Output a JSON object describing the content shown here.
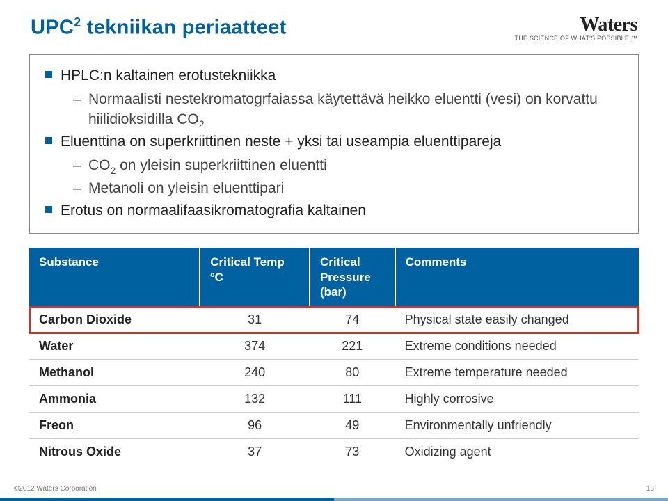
{
  "header": {
    "title_pre": "UPC",
    "title_sup": "2",
    "title_post": " tekniikan periaatteet",
    "logo_name": "Waters",
    "logo_tagline": "THE SCIENCE OF WHAT'S POSSIBLE.™"
  },
  "content": {
    "b1": "HPLC:n kaltainen erotustekniikka",
    "b1_1_pre": "Normaalisti nestekromatogrfaiassa käytettävä heikko eluentti (vesi) on korvattu hiilidioksidilla CO",
    "b1_1_sub": "2",
    "b2": "Eluenttina on superkriittinen neste + yksi tai useampia eluenttipareja",
    "b2_1_pre": "CO",
    "b2_1_sub": "2",
    "b2_1_post": " on yleisin superkriittinen eluentti",
    "b2_2": "Metanoli on yleisin eluenttipari",
    "b3": "Erotus on normaalifaasikromatografia kaltainen"
  },
  "table": {
    "headers": {
      "substance": "Substance",
      "temp": "Critical Temp ºC",
      "pressure_l1": "Critical",
      "pressure_l2": "Pressure",
      "pressure_l3": "(bar)",
      "comments": "Comments"
    },
    "col_widths": [
      "28%",
      "18%",
      "14%",
      "40%"
    ],
    "header_bg": "#0061a0",
    "header_fg": "#ffffff",
    "highlight_color": "#c0392b",
    "rows": [
      {
        "substance": "Carbon Dioxide",
        "temp": "31",
        "pressure": "74",
        "comment": "Physical state easily changed",
        "highlight": true
      },
      {
        "substance": "Water",
        "temp": "374",
        "pressure": "221",
        "comment": "Extreme conditions  needed",
        "highlight": false
      },
      {
        "substance": "Methanol",
        "temp": "240",
        "pressure": "80",
        "comment": "Extreme temperature needed",
        "highlight": false
      },
      {
        "substance": "Ammonia",
        "temp": "132",
        "pressure": "111",
        "comment": "Highly corrosive",
        "highlight": false
      },
      {
        "substance": "Freon",
        "temp": "96",
        "pressure": "49",
        "comment": "Environmentally unfriendly",
        "highlight": false
      },
      {
        "substance": "Nitrous Oxide",
        "temp": "37",
        "pressure": "73",
        "comment": "Oxidizing agent",
        "highlight": false
      }
    ]
  },
  "footer": {
    "copyright": "©2012 Waters Corporation",
    "page": "18"
  }
}
